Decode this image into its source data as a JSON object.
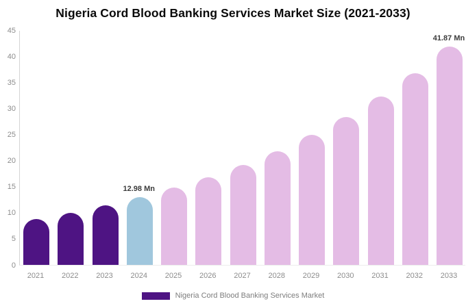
{
  "title": "Nigeria Cord Blood Banking Services Market Size (2021-2033)",
  "legend": {
    "label": "Nigeria Cord Blood Banking Services Market",
    "swatch_color": "#4E1483"
  },
  "colors": {
    "historical_bar": "#4E1483",
    "current_year_bar": "#A0C7DD",
    "forecast_bar": "#E4BCE5",
    "axis_line": "#d4d4d4",
    "tick_text": "#8c8c8c",
    "title_text": "#0a0a0a"
  },
  "chart_data": {
    "type": "bar",
    "title": "Nigeria Cord Blood Banking Services Market Size (2021-2033)",
    "xlabel": "",
    "ylabel": "",
    "unit": "Mn",
    "categories": [
      "2021",
      "2022",
      "2023",
      "2024",
      "2025",
      "2026",
      "2027",
      "2028",
      "2029",
      "2030",
      "2031",
      "2032",
      "2033"
    ],
    "values": [
      8.8,
      10.0,
      11.4,
      12.98,
      14.8,
      16.8,
      19.2,
      21.8,
      24.9,
      28.3,
      32.3,
      36.8,
      41.87
    ],
    "bar_colors": [
      "#4E1483",
      "#4E1483",
      "#4E1483",
      "#A0C7DD",
      "#E4BCE5",
      "#E4BCE5",
      "#E4BCE5",
      "#E4BCE5",
      "#E4BCE5",
      "#E4BCE5",
      "#E4BCE5",
      "#E4BCE5",
      "#E4BCE5"
    ],
    "ylim": [
      0,
      45
    ],
    "yticks": [
      0,
      5,
      10,
      15,
      20,
      25,
      30,
      35,
      40,
      45
    ],
    "grid": false,
    "legend_position": "bottom",
    "annotations": [
      {
        "category": "2024",
        "index": 3,
        "text": "12.98 Mn"
      },
      {
        "category": "2033",
        "index": 12,
        "text": "41.87 Mn"
      }
    ]
  }
}
